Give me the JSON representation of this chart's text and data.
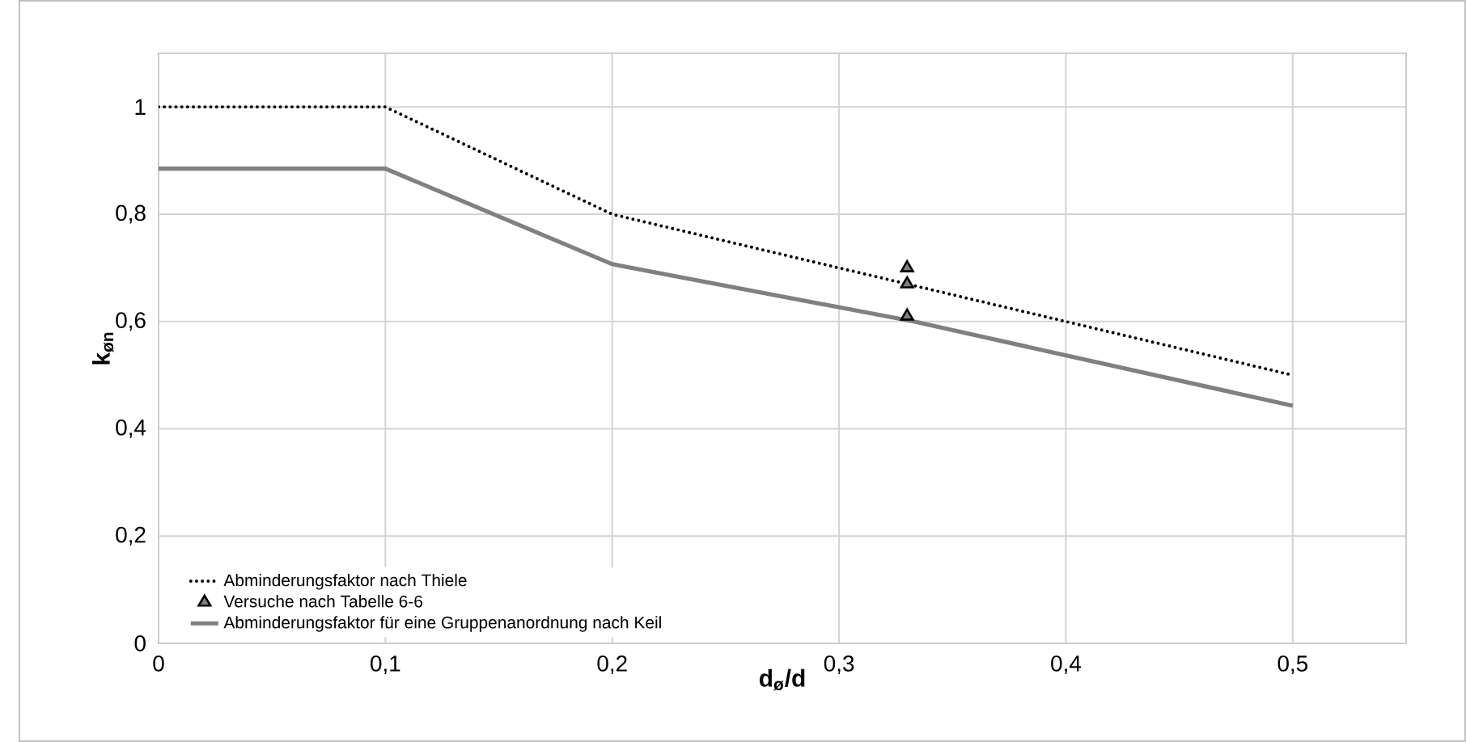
{
  "chart_data": {
    "type": "line",
    "xlabel": "d$_{ø}$/d",
    "ylabel": "k$_{øn}$",
    "xlim": [
      0,
      0.55
    ],
    "ylim": [
      0,
      1.1
    ],
    "xticks": [
      0,
      {
        "value": 0.1,
        "label": "0,1"
      },
      {
        "value": 0.2,
        "label": "0,2"
      },
      {
        "value": 0.3,
        "label": "0,3"
      },
      {
        "value": 0.4,
        "label": "0,4"
      },
      {
        "value": 0.5,
        "label": "0,5"
      }
    ],
    "yticks": [
      0,
      {
        "value": 0.2,
        "label": "0,2"
      },
      {
        "value": 0.4,
        "label": "0,4"
      },
      {
        "value": 0.6,
        "label": "0,6"
      },
      {
        "value": 0.8,
        "label": "0,8"
      },
      1
    ],
    "grid": true,
    "legend": "bottom left",
    "series": [
      {
        "name": "Abminderungsfaktor nach Thiele",
        "type": "line",
        "color": "#000000",
        "line_style": "dotted",
        "marker": "none",
        "x": [
          0,
          0.1,
          0.2,
          0.333,
          0.4,
          0.5
        ],
        "values": [
          1,
          1,
          0.8,
          0.667,
          0.6,
          0.5
        ]
      },
      {
        "name": "Versuche nach Tabelle 6-6",
        "type": "scatter",
        "color": "#808080",
        "marker": "triangle",
        "x": [
          0.33,
          0.33,
          0.33
        ],
        "values": [
          0.7,
          0.67,
          0.61
        ]
      },
      {
        "name": "Abminderungsfaktor für eine Gruppenanordnung nach Keil",
        "type": "line",
        "color": "#808080",
        "line_style": "solid",
        "marker": "none",
        "x": [
          0,
          0.1,
          0.2,
          0.333,
          0.5
        ],
        "values": [
          0.885,
          0.885,
          0.707,
          0.6,
          0.443
        ]
      }
    ]
  }
}
